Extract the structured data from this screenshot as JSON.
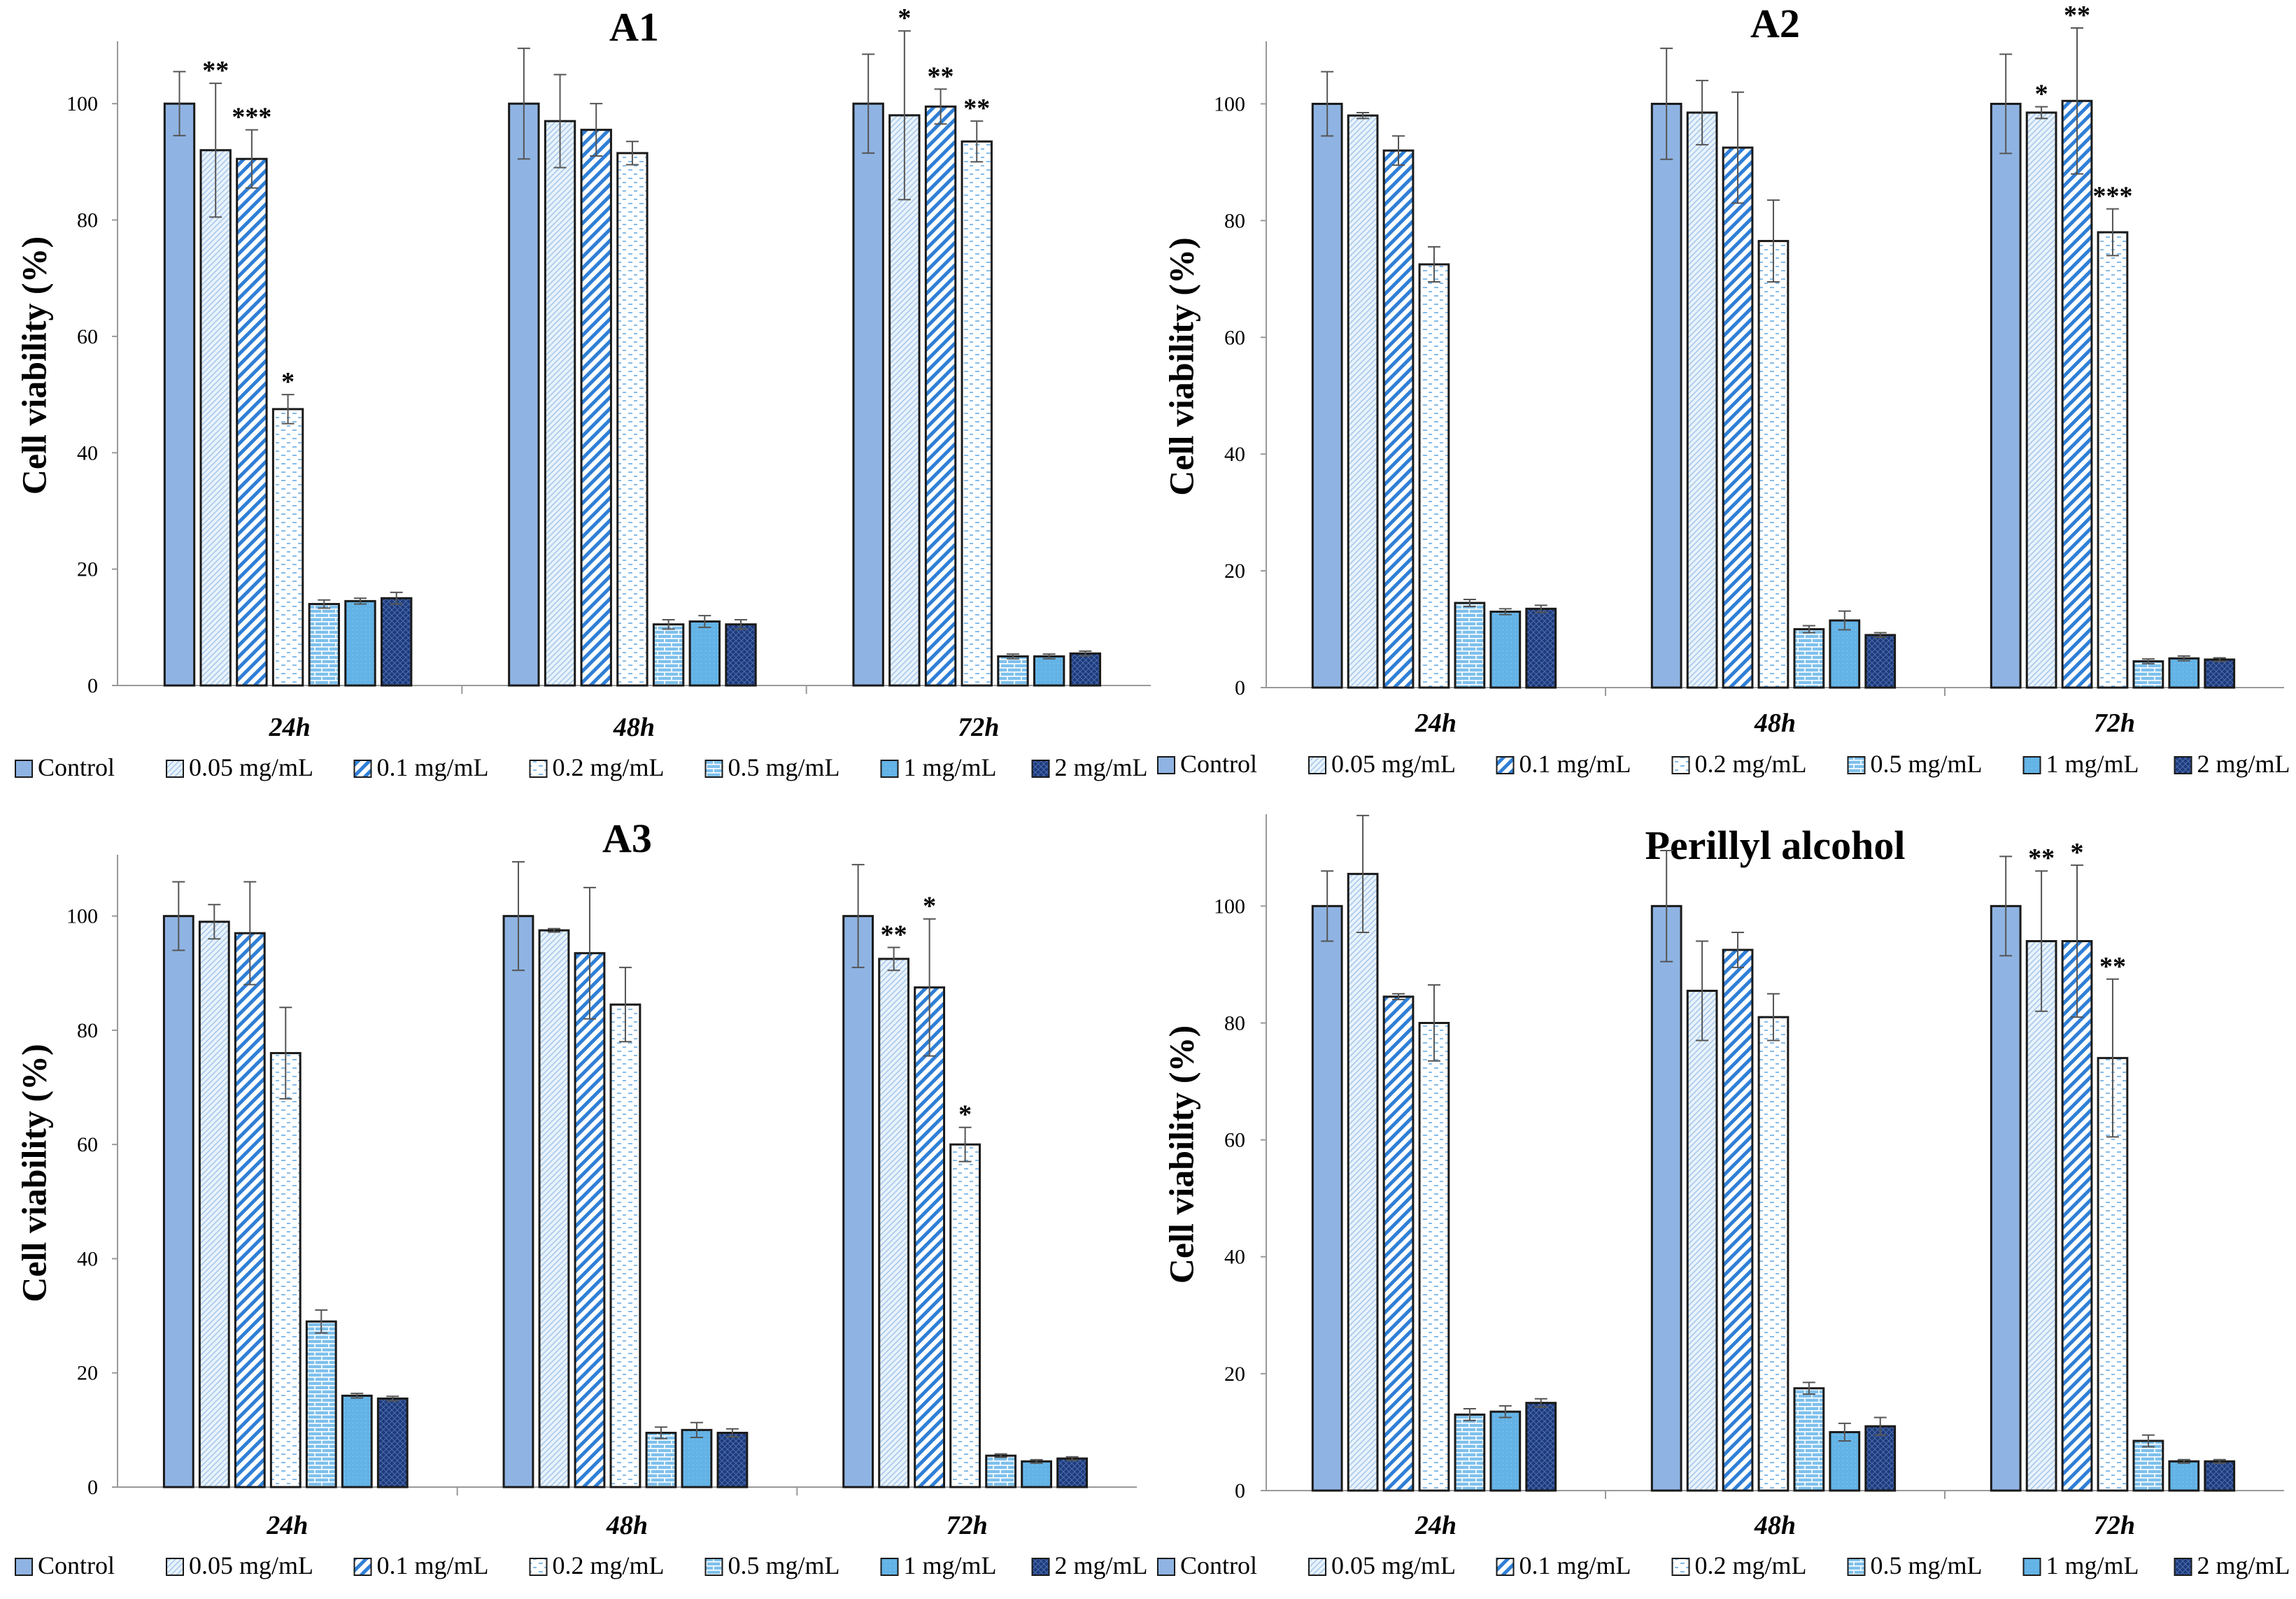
{
  "chart_data": [
    {
      "type": "bar",
      "title": "A1",
      "xlabel": "",
      "ylabel": "Cell viability (%)",
      "ylim": [
        0,
        110
      ],
      "yticks": [
        0,
        20,
        40,
        60,
        80,
        100
      ],
      "categories": [
        "24h",
        "48h",
        "72h"
      ],
      "series": [
        {
          "name": "Control",
          "values": [
            100,
            100,
            100
          ],
          "errors": [
            5.5,
            9.5,
            8.5
          ],
          "sig": [
            "",
            "",
            ""
          ]
        },
        {
          "name": "0.05 mg/mL",
          "values": [
            92,
            97,
            98
          ],
          "errors": [
            11.5,
            8,
            14.5
          ],
          "sig": [
            "**",
            "",
            "*"
          ]
        },
        {
          "name": "0.1 mg/mL",
          "values": [
            90.5,
            95.5,
            99.5
          ],
          "errors": [
            5,
            4.5,
            3
          ],
          "sig": [
            "***",
            "",
            "**"
          ]
        },
        {
          "name": "0.2 mg/mL",
          "values": [
            47.5,
            91.5,
            93.5
          ],
          "errors": [
            2.5,
            2,
            3.5
          ],
          "sig": [
            "*",
            "",
            "**"
          ]
        },
        {
          "name": "0.5 mg/mL",
          "values": [
            14,
            10.5,
            5
          ],
          "errors": [
            0.7,
            0.8,
            0.4
          ],
          "sig": [
            "",
            "",
            ""
          ]
        },
        {
          "name": "1 mg/mL",
          "values": [
            14.5,
            11,
            5
          ],
          "errors": [
            0.5,
            1,
            0.4
          ],
          "sig": [
            "",
            "",
            ""
          ]
        },
        {
          "name": "2 mg/mL",
          "values": [
            15,
            10.5,
            5.5
          ],
          "errors": [
            1,
            0.8,
            0.4
          ],
          "sig": [
            "",
            "",
            ""
          ]
        }
      ]
    },
    {
      "type": "bar",
      "title": "A2",
      "xlabel": "",
      "ylabel": "Cell viability (%)",
      "ylim": [
        0,
        110
      ],
      "yticks": [
        0,
        20,
        40,
        60,
        80,
        100
      ],
      "categories": [
        "24h",
        "48h",
        "72h"
      ],
      "series": [
        {
          "name": "Control",
          "values": [
            100,
            100,
            100
          ],
          "errors": [
            5.5,
            9.5,
            8.5
          ],
          "sig": [
            "",
            "",
            ""
          ]
        },
        {
          "name": "0.05 mg/mL",
          "values": [
            98,
            98.5,
            98.5
          ],
          "errors": [
            0.5,
            5.5,
            1
          ],
          "sig": [
            "",
            "",
            "*"
          ]
        },
        {
          "name": "0.1 mg/mL",
          "values": [
            92,
            92.5,
            100.5
          ],
          "errors": [
            2.5,
            9.5,
            12.5
          ],
          "sig": [
            "",
            "",
            "**"
          ]
        },
        {
          "name": "0.2 mg/mL",
          "values": [
            72.5,
            76.5,
            78
          ],
          "errors": [
            3,
            7,
            4
          ],
          "sig": [
            "",
            "",
            "***"
          ]
        },
        {
          "name": "0.5 mg/mL",
          "values": [
            14.5,
            10,
            4.5
          ],
          "errors": [
            0.6,
            0.6,
            0.4
          ],
          "sig": [
            "",
            "",
            ""
          ]
        },
        {
          "name": "1 mg/mL",
          "values": [
            13,
            11.5,
            5
          ],
          "errors": [
            0.5,
            1.6,
            0.4
          ],
          "sig": [
            "",
            "",
            ""
          ]
        },
        {
          "name": "2 mg/mL",
          "values": [
            13.5,
            9,
            4.8
          ],
          "errors": [
            0.6,
            0.4,
            0.3
          ],
          "sig": [
            "",
            "",
            ""
          ]
        }
      ]
    },
    {
      "type": "bar",
      "title": "A3",
      "xlabel": "",
      "ylabel": "Cell viability (%)",
      "ylim": [
        0,
        110
      ],
      "yticks": [
        0,
        20,
        40,
        60,
        80,
        100
      ],
      "categories": [
        "24h",
        "48h",
        "72h"
      ],
      "series": [
        {
          "name": "Control",
          "values": [
            100,
            100,
            100
          ],
          "errors": [
            6,
            9.5,
            9
          ],
          "sig": [
            "",
            "",
            ""
          ]
        },
        {
          "name": "0.05 mg/mL",
          "values": [
            99,
            97.5,
            92.5
          ],
          "errors": [
            3,
            0.3,
            2
          ],
          "sig": [
            "",
            "",
            "**"
          ]
        },
        {
          "name": "0.1 mg/mL",
          "values": [
            97,
            93.5,
            87.5
          ],
          "errors": [
            9,
            11.5,
            12
          ],
          "sig": [
            "",
            "",
            "*"
          ]
        },
        {
          "name": "0.2 mg/mL",
          "values": [
            76,
            84.5,
            60
          ],
          "errors": [
            8,
            6.5,
            3
          ],
          "sig": [
            "",
            "",
            "*"
          ]
        },
        {
          "name": "0.5 mg/mL",
          "values": [
            29,
            9.5,
            5.5
          ],
          "errors": [
            2,
            1,
            0.3
          ],
          "sig": [
            "",
            "",
            ""
          ]
        },
        {
          "name": "1 mg/mL",
          "values": [
            16,
            10,
            4.5
          ],
          "errors": [
            0.4,
            1.3,
            0.3
          ],
          "sig": [
            "",
            "",
            ""
          ]
        },
        {
          "name": "2 mg/mL",
          "values": [
            15.5,
            9.5,
            5
          ],
          "errors": [
            0.4,
            0.7,
            0.3
          ],
          "sig": [
            "",
            "",
            ""
          ]
        }
      ]
    },
    {
      "type": "bar",
      "title": "Perillyl alcohol",
      "xlabel": "",
      "ylabel": "Cell viability (%)",
      "ylim": [
        0,
        115
      ],
      "yticks": [
        0,
        20,
        40,
        60,
        80,
        100
      ],
      "categories": [
        "24h",
        "48h",
        "72h"
      ],
      "series": [
        {
          "name": "Control",
          "values": [
            100,
            100,
            100
          ],
          "errors": [
            6,
            9.5,
            8.5
          ],
          "sig": [
            "",
            "",
            ""
          ]
        },
        {
          "name": "0.05 mg/mL",
          "values": [
            105.5,
            85.5,
            94
          ],
          "errors": [
            10,
            8.5,
            12
          ],
          "sig": [
            "",
            "",
            "**"
          ]
        },
        {
          "name": "0.1 mg/mL",
          "values": [
            84.5,
            92.5,
            94
          ],
          "errors": [
            0.5,
            3,
            13
          ],
          "sig": [
            "",
            "",
            "*"
          ]
        },
        {
          "name": "0.2 mg/mL",
          "values": [
            80,
            81,
            74
          ],
          "errors": [
            6.5,
            4,
            13.5
          ],
          "sig": [
            "",
            "",
            "**"
          ]
        },
        {
          "name": "0.5 mg/mL",
          "values": [
            13,
            17.5,
            8.5
          ],
          "errors": [
            1,
            1,
            1
          ],
          "sig": [
            "",
            "",
            ""
          ]
        },
        {
          "name": "1 mg/mL",
          "values": [
            13.5,
            10,
            5
          ],
          "errors": [
            1,
            1.5,
            0.3
          ],
          "sig": [
            "",
            "",
            ""
          ]
        },
        {
          "name": "2 mg/mL",
          "values": [
            15,
            11,
            5
          ],
          "errors": [
            0.7,
            1.5,
            0.3
          ],
          "sig": [
            "",
            "",
            ""
          ]
        }
      ]
    }
  ],
  "legend": {
    "entries": [
      "Control",
      "0.05 mg/mL",
      "0.1 mg/mL",
      "0.2 mg/mL",
      "0.5 mg/mL",
      "1 mg/mL",
      "2 mg/mL"
    ],
    "colors": [
      "#8fb4e3",
      "#ddeefa",
      "#2f7fd6",
      "#ffffff",
      "#6fb9e8",
      "#63b3e6",
      "#1f3a7a"
    ]
  }
}
